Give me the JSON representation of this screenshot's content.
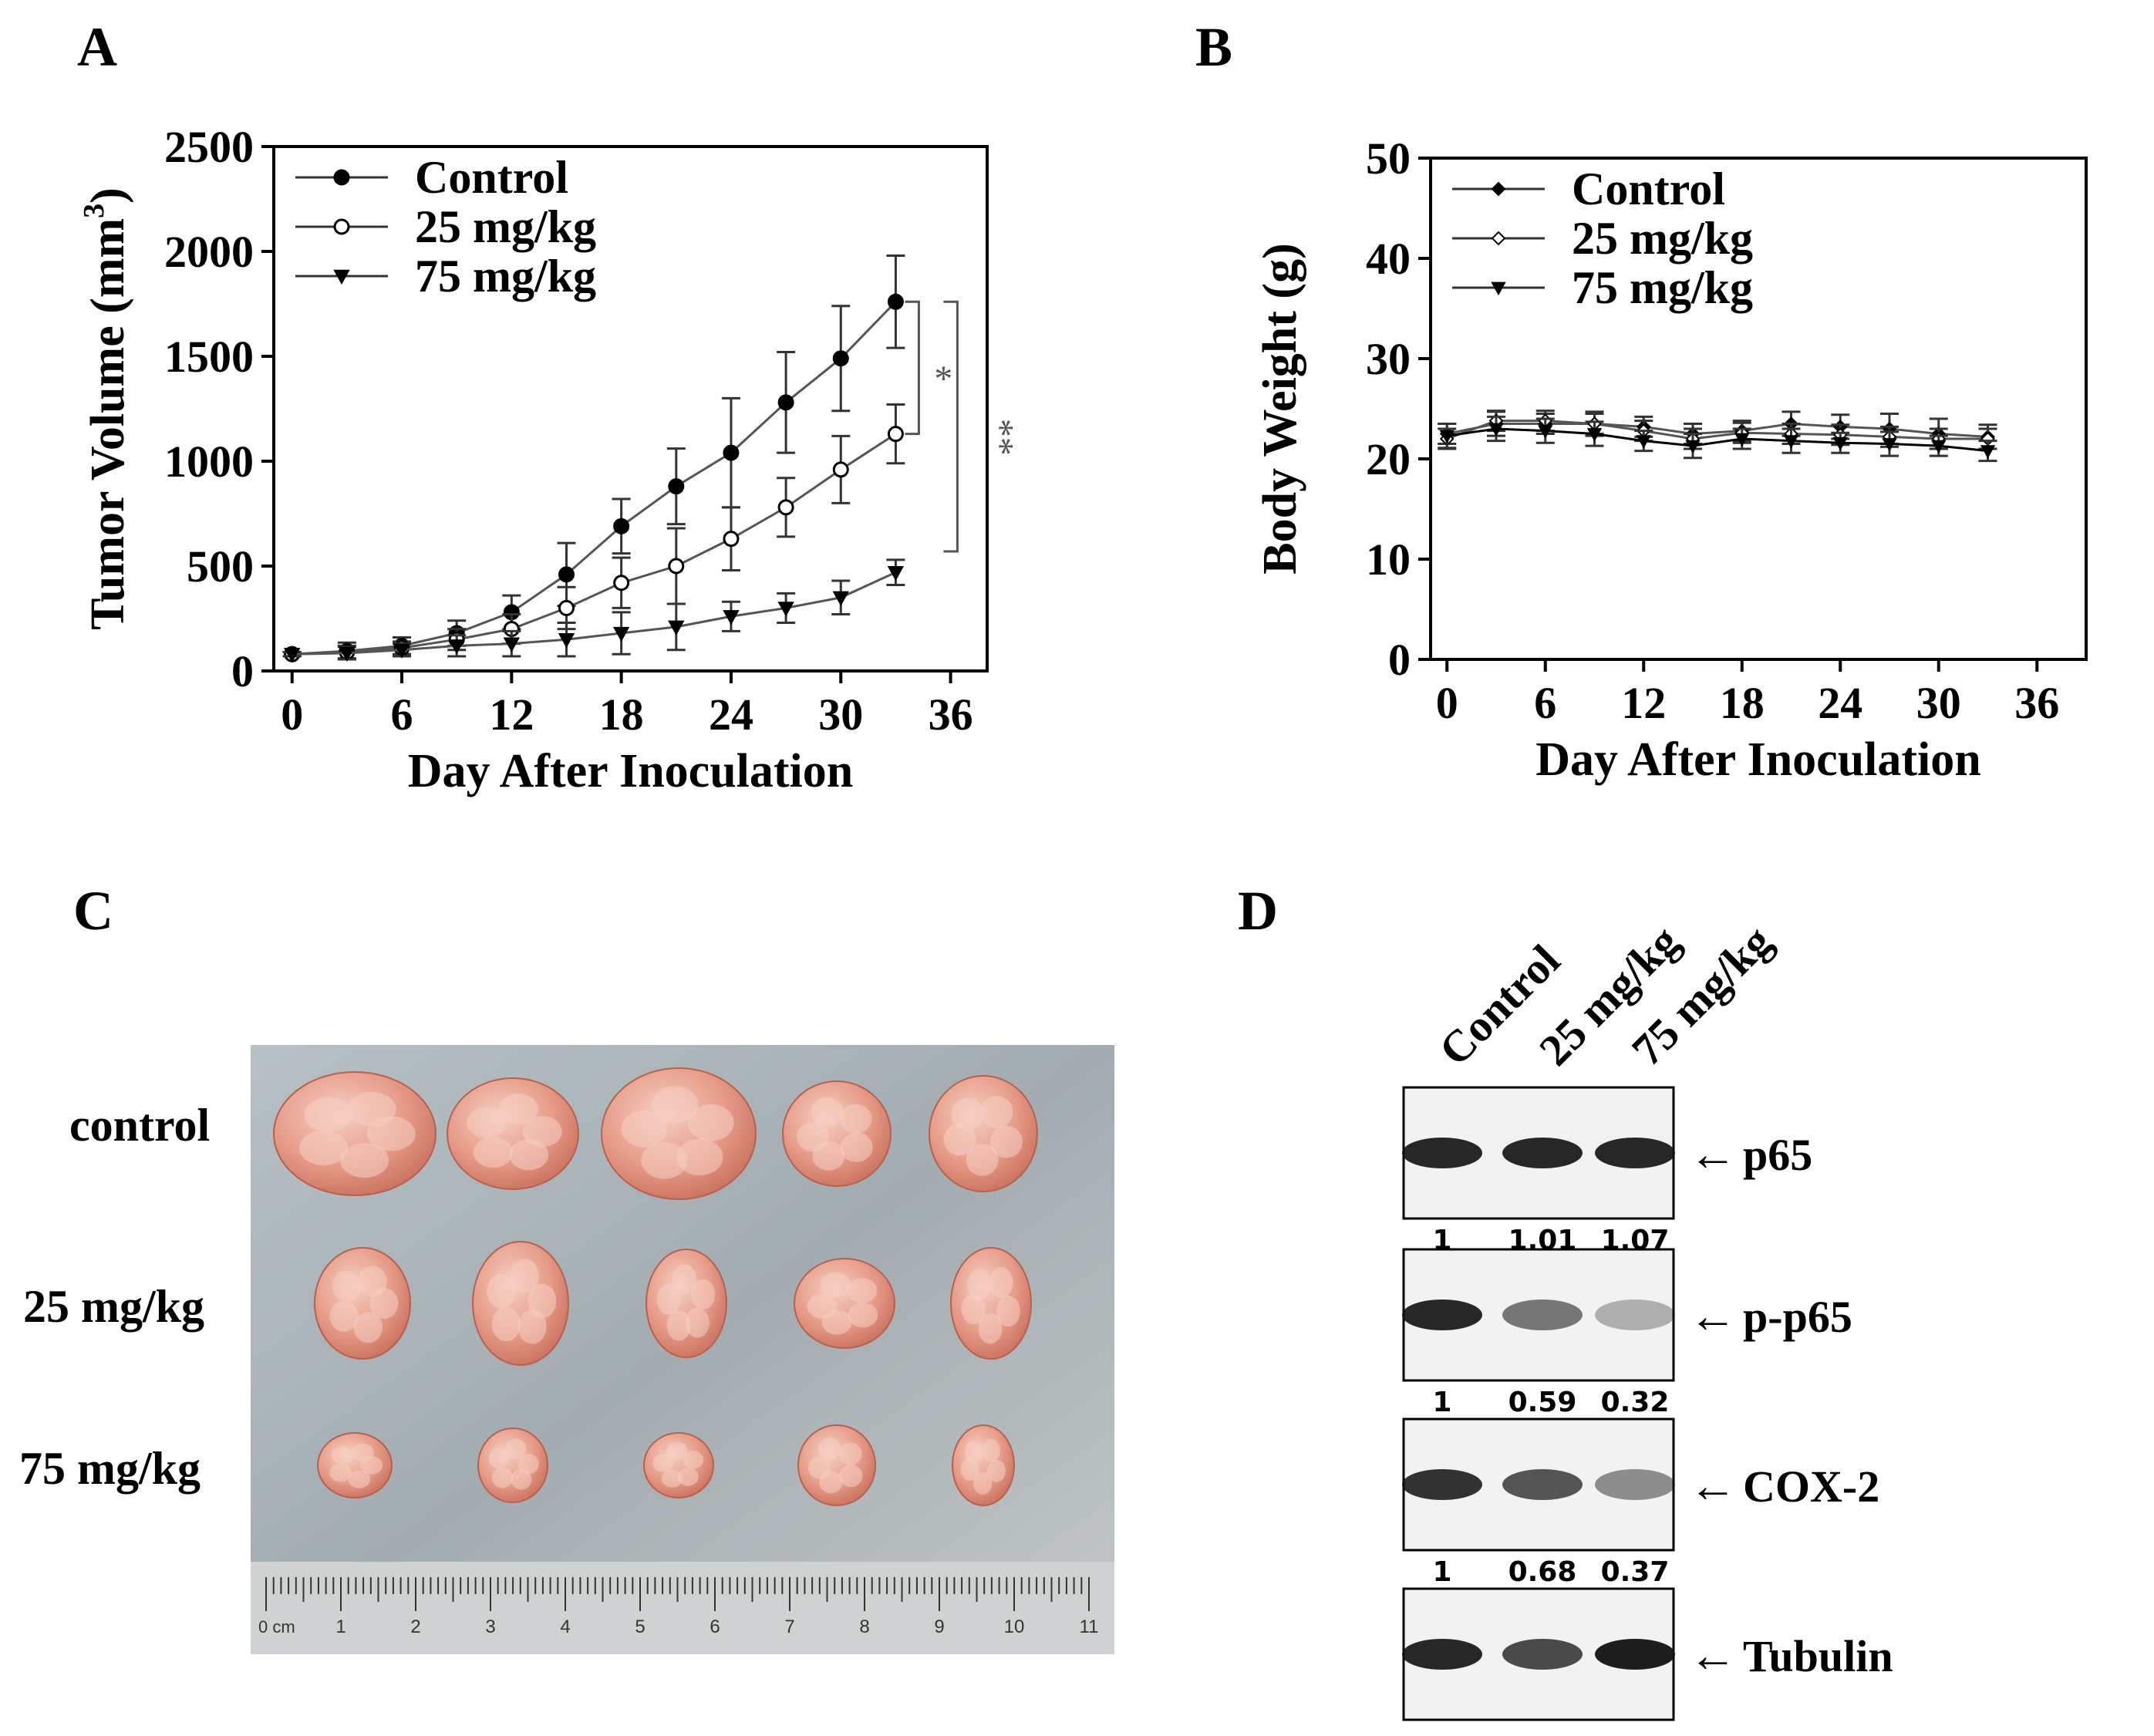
{
  "panels": {
    "a": "A",
    "b": "B",
    "c": "C",
    "d": "D"
  },
  "chart_data": [
    {
      "panel": "A",
      "type": "line",
      "title": "",
      "xlabel": "Day After Inoculation",
      "ylabel_main": "Tumor Volume (mm",
      "ylabel_sup": "3",
      "ylabel_end": ")",
      "xlim": [
        -1,
        38
      ],
      "ylim": [
        0,
        2500
      ],
      "xticks": [
        "0",
        "6",
        "12",
        "18",
        "24",
        "30",
        "36"
      ],
      "xtick_values": [
        0,
        6,
        12,
        18,
        24,
        30,
        36
      ],
      "yticks": [
        "0",
        "500",
        "1000",
        "1500",
        "2000",
        "2500"
      ],
      "ytick_values": [
        0,
        500,
        1000,
        1500,
        2000,
        2500
      ],
      "x": [
        0,
        3,
        6,
        9,
        12,
        15,
        18,
        21,
        24,
        27,
        30,
        33
      ],
      "legend_position": "top-left",
      "series": [
        {
          "name": "Control",
          "marker": "filled-circle",
          "values": [
            80,
            95,
            120,
            180,
            280,
            460,
            690,
            880,
            1040,
            1280,
            1490,
            1760
          ],
          "errors": [
            10,
            40,
            40,
            60,
            80,
            150,
            130,
            180,
            260,
            240,
            250,
            220
          ]
        },
        {
          "name": "25 mg/kg",
          "marker": "open-circle",
          "values": [
            80,
            90,
            110,
            150,
            200,
            300,
            420,
            500,
            630,
            780,
            960,
            1130
          ],
          "errors": [
            10,
            30,
            30,
            50,
            70,
            100,
            120,
            180,
            150,
            140,
            160,
            140
          ]
        },
        {
          "name": "75 mg/kg",
          "marker": "filled-triangle-down",
          "values": [
            80,
            85,
            100,
            120,
            130,
            150,
            180,
            210,
            260,
            300,
            350,
            470
          ],
          "errors": [
            10,
            30,
            30,
            50,
            60,
            80,
            100,
            110,
            70,
            70,
            80,
            60
          ]
        }
      ],
      "annotations": [
        "*",
        "**"
      ]
    },
    {
      "panel": "B",
      "type": "line",
      "title": "",
      "xlabel": "Day After Inoculation",
      "ylabel": "Body Weight (g)",
      "xlim": [
        -1,
        39
      ],
      "ylim": [
        0,
        50
      ],
      "xticks": [
        "0",
        "6",
        "12",
        "18",
        "24",
        "30",
        "36"
      ],
      "xtick_values": [
        0,
        6,
        12,
        18,
        24,
        30,
        36
      ],
      "yticks": [
        "0",
        "10",
        "20",
        "30",
        "40",
        "50"
      ],
      "ytick_values": [
        0,
        10,
        20,
        30,
        40,
        50
      ],
      "x": [
        0,
        3,
        6,
        9,
        12,
        15,
        18,
        21,
        24,
        27,
        30,
        33
      ],
      "legend_position": "top-left",
      "series": [
        {
          "name": "Control",
          "marker": "filled-diamond",
          "values": [
            22.5,
            23.5,
            23.5,
            23.5,
            23.2,
            22.5,
            22.8,
            23.5,
            23.2,
            23.0,
            22.5,
            22.2
          ],
          "errors": [
            1.0,
            1.2,
            1.0,
            1.2,
            1.0,
            1.0,
            1.0,
            1.2,
            1.2,
            1.5,
            1.5,
            1.2
          ]
        },
        {
          "name": "25 mg/kg",
          "marker": "open-diamond",
          "values": [
            22.0,
            23.8,
            23.8,
            23.5,
            22.8,
            22.0,
            22.6,
            22.5,
            22.4,
            22.2,
            22.0,
            22.0
          ],
          "errors": [
            1.0,
            1.0,
            1.0,
            1.0,
            1.0,
            1.0,
            1.0,
            1.0,
            1.0,
            1.0,
            1.0,
            1.0
          ]
        },
        {
          "name": "75 mg/kg",
          "marker": "filled-triangle-down",
          "values": [
            22.3,
            23.0,
            22.8,
            22.5,
            21.8,
            21.3,
            22.0,
            21.8,
            21.6,
            21.5,
            21.3,
            20.8
          ],
          "errors": [
            1.2,
            1.2,
            1.2,
            1.2,
            1.0,
            1.2,
            1.0,
            1.2,
            1.0,
            1.2,
            1.0,
            1.0
          ]
        }
      ]
    }
  ],
  "panel_c": {
    "rows": [
      "control",
      "25 mg/kg",
      "75 mg/kg"
    ],
    "ruler_unit": "0 cm",
    "ruler_numbers": [
      "1",
      "2",
      "3",
      "4",
      "5",
      "6",
      "7",
      "8",
      "9",
      "10",
      "11"
    ]
  },
  "panel_d": {
    "lanes": [
      "Control",
      "25 mg/kg",
      "75 mg/kg"
    ],
    "blots": [
      {
        "label": "p65",
        "intensity": [
          0.9,
          0.9,
          0.9
        ],
        "quant": [
          "1",
          "1.01",
          "1.07"
        ]
      },
      {
        "label": "p-p65",
        "intensity": [
          0.9,
          0.55,
          0.3
        ],
        "quant": [
          "1",
          "0.59",
          "0.32"
        ]
      },
      {
        "label": "COX-2",
        "intensity": [
          0.85,
          0.7,
          0.45
        ],
        "quant": [
          "1",
          "0.68",
          "0.37"
        ]
      },
      {
        "label": "Tubulin",
        "intensity": [
          0.9,
          0.75,
          0.95
        ],
        "quant": []
      }
    ],
    "arrow_glyph": "←"
  },
  "colors": {
    "line": "#6b6b6b",
    "axis": "#000000",
    "band": "#111111",
    "photo_bg": "#a9b1b5",
    "tumor": "#e0907c",
    "tumor_light": "#f0c0b0"
  }
}
